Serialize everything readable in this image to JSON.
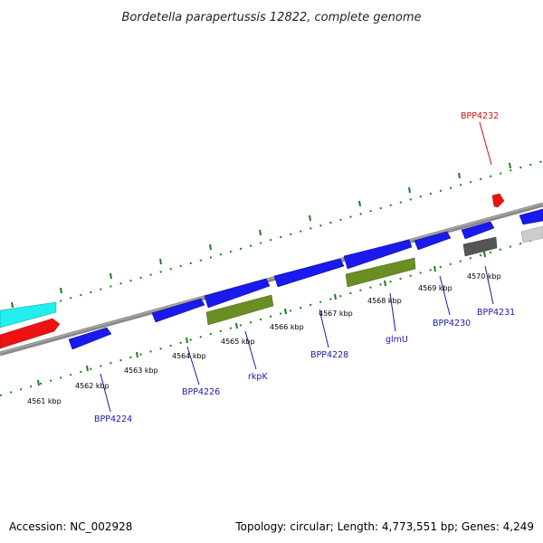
{
  "title": "Bordetella parapertussis 12822, complete genome",
  "footer": {
    "accession": "Accession: NC_002928",
    "summary": "Topology: circular; Length: 4,773,551 bp; Genes: 4,249"
  },
  "colors": {
    "backbone": "#8a8a8a",
    "tick": "#1e7d1e",
    "cds": "#1a1aee",
    "rna": "#6b8e23",
    "red": "#ee1111",
    "cyan": "#22eeee",
    "gray": "#555555",
    "lightgray": "#cccccc",
    "label_blue": "#1a1aaa",
    "label_red": "#cc1111"
  },
  "kbp_labels": [
    "4561 kbp",
    "4562 kbp",
    "4563 kbp",
    "4564 kbp",
    "4565 kbp",
    "4566 kbp",
    "4567 kbp",
    "4568 kbp",
    "4569 kbp",
    "4570 kbp"
  ],
  "gene_labels": [
    {
      "text": "BPP4224",
      "color": "label_blue"
    },
    {
      "text": "BPP4226",
      "color": "label_blue"
    },
    {
      "text": "rkpK",
      "color": "label_blue"
    },
    {
      "text": "BPP4228",
      "color": "label_blue"
    },
    {
      "text": "glmU",
      "color": "label_blue"
    },
    {
      "text": "BPP4230",
      "color": "label_blue"
    },
    {
      "text": "BPP4231",
      "color": "label_blue"
    },
    {
      "text": "BPP4232",
      "color": "label_red"
    }
  ]
}
